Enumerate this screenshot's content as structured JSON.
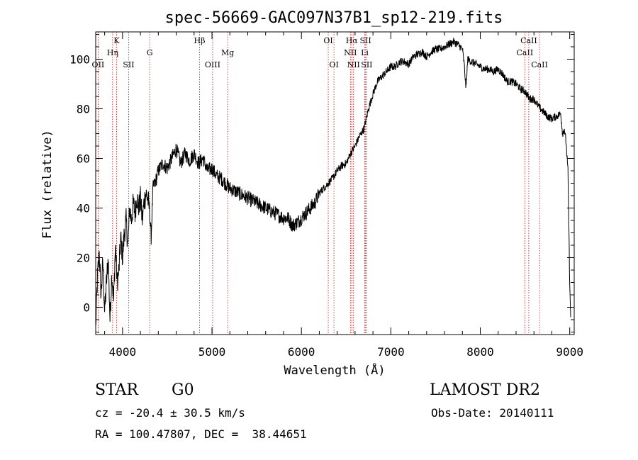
{
  "chart_data": {
    "type": "line",
    "title": "spec-56669-GAC097N37B1_sp12-219.fits",
    "xlabel": "Wavelength (Å)",
    "ylabel": "Flux (relative)",
    "xlim": [
      3700,
      9050
    ],
    "ylim": [
      -11,
      111
    ],
    "grid": false,
    "x_ticks": [
      4000,
      5000,
      6000,
      7000,
      8000,
      9000
    ],
    "y_ticks": [
      0,
      20,
      40,
      60,
      80,
      100
    ],
    "series": [
      {
        "color": "#000000",
        "x": [
          3700,
          3720,
          3740,
          3760,
          3780,
          3800,
          3820,
          3840,
          3860,
          3880,
          3900,
          3920,
          3940,
          3960,
          3980,
          4000,
          4020,
          4040,
          4060,
          4080,
          4100,
          4120,
          4140,
          4160,
          4180,
          4200,
          4220,
          4240,
          4260,
          4280,
          4300,
          4320,
          4340,
          4360,
          4380,
          4400,
          4450,
          4500,
          4550,
          4600,
          4650,
          4700,
          4750,
          4800,
          4850,
          4900,
          4950,
          5000,
          5050,
          5100,
          5150,
          5200,
          5250,
          5300,
          5400,
          5500,
          5600,
          5700,
          5800,
          5850,
          5900,
          5950,
          6000,
          6050,
          6100,
          6150,
          6200,
          6250,
          6300,
          6350,
          6400,
          6450,
          6500,
          6550,
          6600,
          6650,
          6700,
          6750,
          6800,
          6850,
          6900,
          6950,
          7000,
          7050,
          7100,
          7150,
          7200,
          7250,
          7300,
          7350,
          7400,
          7450,
          7500,
          7550,
          7600,
          7650,
          7700,
          7750,
          7800,
          7820,
          7840,
          7860,
          7900,
          7950,
          8000,
          8050,
          8100,
          8150,
          8200,
          8250,
          8300,
          8350,
          8400,
          8450,
          8500,
          8550,
          8600,
          8650,
          8700,
          8750,
          8800,
          8850,
          8900,
          8920,
          8940,
          8960,
          8980,
          9000,
          9010
        ],
        "y": [
          -8,
          12,
          22,
          5,
          18,
          -2,
          10,
          20,
          -5,
          14,
          2,
          25,
          10,
          15,
          28,
          20,
          30,
          35,
          25,
          40,
          35,
          42,
          38,
          45,
          40,
          44,
          35,
          42,
          46,
          44,
          40,
          28,
          48,
          50,
          52,
          55,
          58,
          56,
          60,
          64,
          58,
          62,
          59,
          62,
          58,
          60,
          55,
          56,
          53,
          52,
          50,
          48,
          47,
          46,
          44,
          42,
          40,
          38,
          36,
          36,
          33,
          34,
          36,
          38,
          40,
          42,
          46,
          48,
          50,
          52,
          55,
          57,
          58,
          62,
          65,
          69,
          72,
          80,
          86,
          91,
          93,
          95,
          97,
          97,
          99,
          99,
          98,
          101,
          102,
          103,
          101,
          103,
          104,
          104,
          105,
          106,
          107,
          106,
          104,
          98,
          88,
          100,
          99,
          98,
          97,
          96,
          96,
          95,
          96,
          94,
          91,
          91,
          90,
          88,
          87,
          84,
          84,
          81,
          79,
          77,
          76,
          77,
          78,
          70,
          72,
          66,
          55,
          10,
          -4
        ]
      }
    ],
    "line_markers": [
      {
        "wavelength": 3727,
        "label": "OII",
        "row": 3
      },
      {
        "wavelength": 3933,
        "label": "K",
        "row": 1
      },
      {
        "wavelength": 3889,
        "label": "Hη",
        "row": 2
      },
      {
        "wavelength": 4068,
        "label": "SII",
        "row": 3
      },
      {
        "wavelength": 4304,
        "label": "G",
        "row": 2
      },
      {
        "wavelength": 4861,
        "label": "Hβ",
        "row": 1
      },
      {
        "wavelength": 5007,
        "label": "OIII",
        "row": 3
      },
      {
        "wavelength": 5175,
        "label": "Mg",
        "row": 2
      },
      {
        "wavelength": 6300,
        "label": "OI",
        "row": 1
      },
      {
        "wavelength": 6364,
        "label": "OI",
        "row": 3
      },
      {
        "wavelength": 6548,
        "label": "NII",
        "row": 2
      },
      {
        "wavelength": 6563,
        "label": "Hα",
        "row": 1
      },
      {
        "wavelength": 6583,
        "label": "NII",
        "row": 3
      },
      {
        "wavelength": 6708,
        "label": "Li",
        "row": 2
      },
      {
        "wavelength": 6717,
        "label": "SII",
        "row": 1
      },
      {
        "wavelength": 6731,
        "label": "SII",
        "row": 3
      },
      {
        "wavelength": 8498,
        "label": "CaII",
        "row": 2
      },
      {
        "wavelength": 8542,
        "label": "CaII",
        "row": 1
      },
      {
        "wavelength": 8662,
        "label": "CaII",
        "row": 3
      }
    ]
  },
  "info": {
    "object_class": "STAR",
    "subclass": "G0",
    "survey": "LAMOST DR2",
    "velocity": "cz = -20.4 ± 30.5 km/s",
    "obs_date": "Obs-Date: 20140111",
    "coords": "RA = 100.47807, DEC =  38.44651"
  }
}
